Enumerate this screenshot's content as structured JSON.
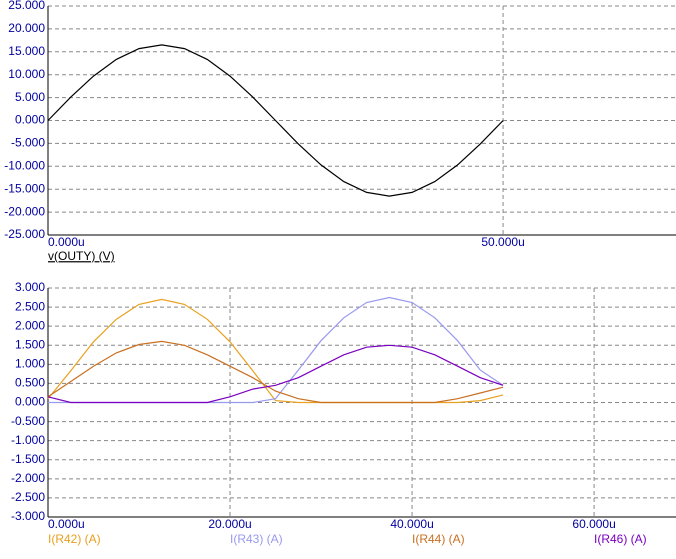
{
  "chart_data": [
    {
      "type": "line",
      "x": [
        0,
        2.5,
        5,
        7.5,
        10,
        12.5,
        15,
        17.5,
        20,
        22.5,
        25,
        27.5,
        30,
        32.5,
        35,
        37.5,
        40,
        42.5,
        45,
        47.5,
        50
      ],
      "series": [
        {
          "name": "v(OUTY) (V)",
          "color": "#000000",
          "values": [
            0,
            5.1,
            9.7,
            13.35,
            15.69,
            16.5,
            15.69,
            13.35,
            9.7,
            5.1,
            0,
            -5.1,
            -9.7,
            -13.35,
            -15.69,
            -16.5,
            -15.69,
            -13.35,
            -9.7,
            -5.1,
            0
          ]
        }
      ],
      "xlim": [
        0,
        69
      ],
      "xticks": [
        {
          "value": 0,
          "label": "0.000u"
        },
        {
          "value": 50,
          "label": "50.000u"
        }
      ],
      "ylim": [
        -25,
        25
      ],
      "yticks": [
        {
          "value": 25,
          "label": "25.000"
        },
        {
          "value": 20,
          "label": "20.000"
        },
        {
          "value": 15,
          "label": "15.000"
        },
        {
          "value": 10,
          "label": "10.000"
        },
        {
          "value": 5,
          "label": "5.000"
        },
        {
          "value": 0,
          "label": "0.000"
        },
        {
          "value": -5,
          "label": "-5.000"
        },
        {
          "value": -10,
          "label": "-10.000"
        },
        {
          "value": -15,
          "label": "-15.000"
        },
        {
          "value": -20,
          "label": "-20.000"
        },
        {
          "value": -25,
          "label": "-25.000"
        }
      ],
      "grid": true
    },
    {
      "type": "line",
      "x": [
        0,
        2.5,
        5,
        7.5,
        10,
        12.5,
        15,
        17.5,
        20,
        22.5,
        25,
        27.5,
        30,
        32.5,
        35,
        37.5,
        40,
        42.5,
        45,
        47.5,
        50
      ],
      "series": [
        {
          "name": "I(R42) (A)",
          "color": "#e8a020",
          "values": [
            0.1,
            0.83,
            1.59,
            2.18,
            2.57,
            2.7,
            2.57,
            2.18,
            1.59,
            0.83,
            0.05,
            0,
            0,
            0,
            0,
            0,
            0,
            0,
            0,
            0.05,
            0.2
          ]
        },
        {
          "name": "I(R43) (A)",
          "color": "#9999ee",
          "values": [
            0,
            0,
            0,
            0,
            0,
            0,
            0,
            0,
            0,
            0,
            0.1,
            0.85,
            1.62,
            2.22,
            2.62,
            2.75,
            2.62,
            2.22,
            1.62,
            0.85,
            0.45
          ]
        },
        {
          "name": "I(R44) (A)",
          "color": "#c87020",
          "values": [
            0.15,
            0.55,
            0.95,
            1.3,
            1.52,
            1.6,
            1.5,
            1.25,
            0.95,
            0.65,
            0.3,
            0.1,
            0,
            0,
            0,
            0,
            0,
            0,
            0.1,
            0.25,
            0.4
          ]
        },
        {
          "name": "I(R46) (A)",
          "color": "#7a00c0",
          "values": [
            0.15,
            0,
            0,
            0,
            0,
            0,
            0,
            0,
            0.15,
            0.35,
            0.45,
            0.65,
            0.95,
            1.25,
            1.45,
            1.5,
            1.45,
            1.25,
            0.95,
            0.65,
            0.45
          ]
        }
      ],
      "xlim": [
        0,
        69
      ],
      "xticks": [
        {
          "value": 0,
          "label": "0.000u"
        },
        {
          "value": 20,
          "label": "20.000u"
        },
        {
          "value": 40,
          "label": "40.000u"
        },
        {
          "value": 60,
          "label": "60.000u"
        }
      ],
      "ylim": [
        -3,
        3
      ],
      "yticks": [
        {
          "value": 3,
          "label": "3.000"
        },
        {
          "value": 2.5,
          "label": "2.500"
        },
        {
          "value": 2,
          "label": "2.000"
        },
        {
          "value": 1.5,
          "label": "1.500"
        },
        {
          "value": 1,
          "label": "1.000"
        },
        {
          "value": 0.5,
          "label": "0.500"
        },
        {
          "value": 0,
          "label": "0.000"
        },
        {
          "value": -0.5,
          "label": "-0.500"
        },
        {
          "value": -1,
          "label": "-1.000"
        },
        {
          "value": -1.5,
          "label": "-1.500"
        },
        {
          "value": -2,
          "label": "-2.000"
        },
        {
          "value": -2.5,
          "label": "-2.500"
        },
        {
          "value": -3,
          "label": "-3.000"
        }
      ],
      "grid": true
    }
  ]
}
